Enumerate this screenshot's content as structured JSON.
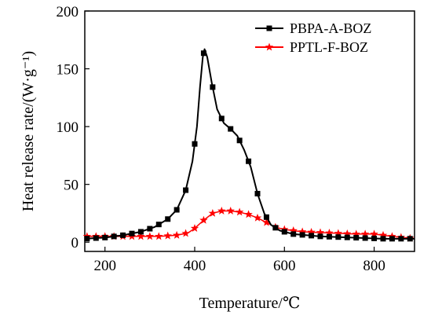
{
  "chart_data": {
    "type": "line",
    "xlabel": "Temperature/℃",
    "ylabel": "Heat release rate/(W·g⁻¹)",
    "xlim": [
      155,
      890
    ],
    "ylim": [
      -8,
      200
    ],
    "x_ticks": [
      200,
      400,
      600,
      800
    ],
    "y_ticks": [
      0,
      50,
      100,
      150,
      200
    ],
    "grid": false,
    "legend_position": "top-right",
    "series": [
      {
        "name": "PBPA-A-BOZ",
        "color": "#000000",
        "marker": "square",
        "curve": [
          [
            155,
            3
          ],
          [
            200,
            4
          ],
          [
            240,
            6
          ],
          [
            280,
            9
          ],
          [
            310,
            13
          ],
          [
            340,
            20
          ],
          [
            360,
            28
          ],
          [
            380,
            45
          ],
          [
            395,
            70
          ],
          [
            405,
            100
          ],
          [
            412,
            135
          ],
          [
            418,
            160
          ],
          [
            422,
            167
          ],
          [
            428,
            160
          ],
          [
            438,
            138
          ],
          [
            450,
            115
          ],
          [
            465,
            103
          ],
          [
            480,
            98
          ],
          [
            495,
            92
          ],
          [
            510,
            80
          ],
          [
            525,
            65
          ],
          [
            540,
            42
          ],
          [
            555,
            25
          ],
          [
            570,
            15
          ],
          [
            590,
            10
          ],
          [
            620,
            7
          ],
          [
            680,
            5
          ],
          [
            750,
            4
          ],
          [
            820,
            3
          ],
          [
            890,
            3
          ]
        ],
        "marker_x": [
          160,
          180,
          200,
          220,
          240,
          260,
          280,
          300,
          320,
          340,
          360,
          380,
          400,
          420,
          440,
          460,
          480,
          500,
          520,
          540,
          560,
          580,
          600,
          620,
          640,
          660,
          680,
          700,
          720,
          740,
          760,
          780,
          800,
          820,
          840,
          860,
          880
        ]
      },
      {
        "name": "PPTL-F-BOZ",
        "color": "#ff0000",
        "marker": "star",
        "curve": [
          [
            155,
            5
          ],
          [
            250,
            5
          ],
          [
            320,
            5
          ],
          [
            360,
            6
          ],
          [
            385,
            8
          ],
          [
            400,
            12
          ],
          [
            420,
            19
          ],
          [
            440,
            25
          ],
          [
            460,
            27
          ],
          [
            480,
            27
          ],
          [
            500,
            26
          ],
          [
            520,
            24
          ],
          [
            540,
            21
          ],
          [
            560,
            17
          ],
          [
            580,
            13
          ],
          [
            600,
            11
          ],
          [
            640,
            9
          ],
          [
            700,
            8
          ],
          [
            760,
            7
          ],
          [
            800,
            7
          ],
          [
            840,
            5
          ],
          [
            890,
            3
          ]
        ],
        "marker_x": [
          160,
          180,
          200,
          220,
          240,
          260,
          280,
          300,
          320,
          340,
          360,
          380,
          400,
          420,
          440,
          460,
          480,
          500,
          520,
          540,
          560,
          580,
          600,
          620,
          640,
          660,
          680,
          700,
          720,
          740,
          760,
          780,
          800,
          820,
          840,
          860,
          880
        ]
      }
    ]
  }
}
